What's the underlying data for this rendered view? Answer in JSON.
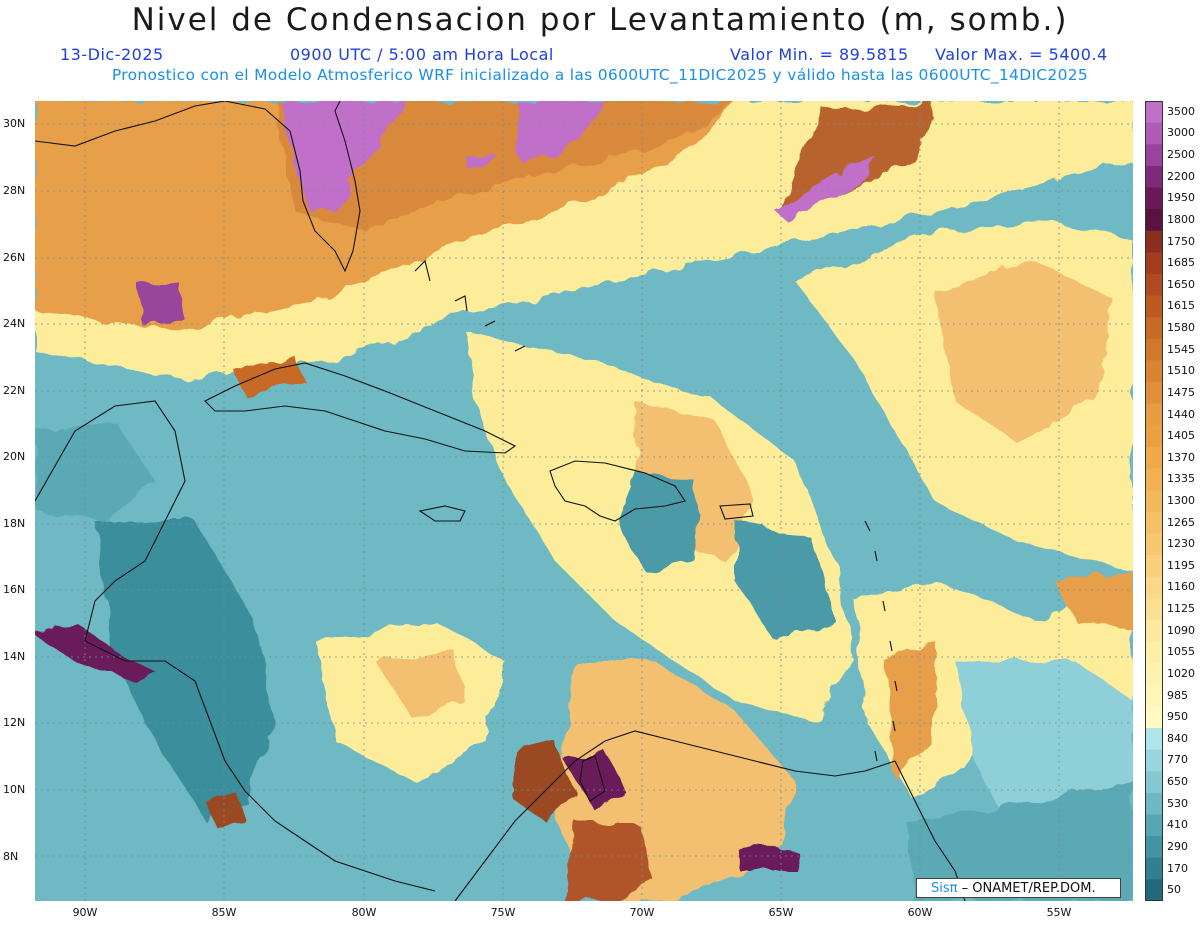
{
  "header": {
    "title": "Nivel de Condensacion por Levantamiento (m, somb.)",
    "date": "13-Dic-2025",
    "time": "0900 UTC / 5:00 am Hora Local",
    "min_label": "Valor Min. = 89.5815",
    "max_label": "Valor Max. = 5400.4",
    "description": "Pronostico con el Modelo Atmosferico WRF inicializado a las 0600UTC_11DIC2025 y válido hasta las  0600UTC_14DIC2025"
  },
  "map": {
    "lat_labels": [
      "30N",
      "28N",
      "26N",
      "24N",
      "22N",
      "20N",
      "18N",
      "16N",
      "14N",
      "12N",
      "10N",
      "8N"
    ],
    "lon_labels": [
      "90W",
      "85W",
      "80W",
      "75W",
      "70W",
      "65W",
      "60W",
      "55W"
    ],
    "colors": {
      "teal_dark": "#2e8a98",
      "teal": "#5aaab5",
      "teal_light": "#8fcfd8",
      "yellow": "#fdec9a",
      "orange_light": "#f2c070",
      "orange": "#d9893a",
      "brown": "#9a4a22",
      "purple_dark": "#6a1a4e",
      "purple_light": "#c070c8"
    }
  },
  "colorbar": {
    "labels": [
      "3500",
      "3000",
      "2500",
      "2200",
      "1950",
      "1800",
      "1750",
      "1685",
      "1650",
      "1615",
      "1580",
      "1545",
      "1510",
      "1475",
      "1440",
      "1405",
      "1370",
      "1335",
      "1300",
      "1265",
      "1230",
      "1195",
      "1160",
      "1125",
      "1090",
      "1055",
      "1020",
      "985",
      "950",
      "840",
      "770",
      "650",
      "530",
      "410",
      "290",
      "170",
      "50"
    ],
    "colors": [
      "#c070c8",
      "#b05cb4",
      "#98449c",
      "#7e2a7a",
      "#6a1a5a",
      "#5a123e",
      "#8a2e20",
      "#a33d1e",
      "#b04a20",
      "#bc5a22",
      "#c66a26",
      "#d0782c",
      "#d88432",
      "#e0903a",
      "#e79c42",
      "#ec9f3e",
      "#f0a848",
      "#f2b052",
      "#f4b85c",
      "#f6c066",
      "#f8c870",
      "#f9d07c",
      "#fad888",
      "#fbe094",
      "#fce8a0",
      "#fdeea8",
      "#fef2b0",
      "#fef6b8",
      "#fffac2",
      "#b2e4ec",
      "#9ad6e0",
      "#84c8d2",
      "#6db8c4",
      "#57a6b4",
      "#4294a4",
      "#327f92",
      "#22697e"
    ]
  },
  "credit": {
    "logo": "Sisπ",
    "text": "– ONAMET/REP.DOM."
  }
}
